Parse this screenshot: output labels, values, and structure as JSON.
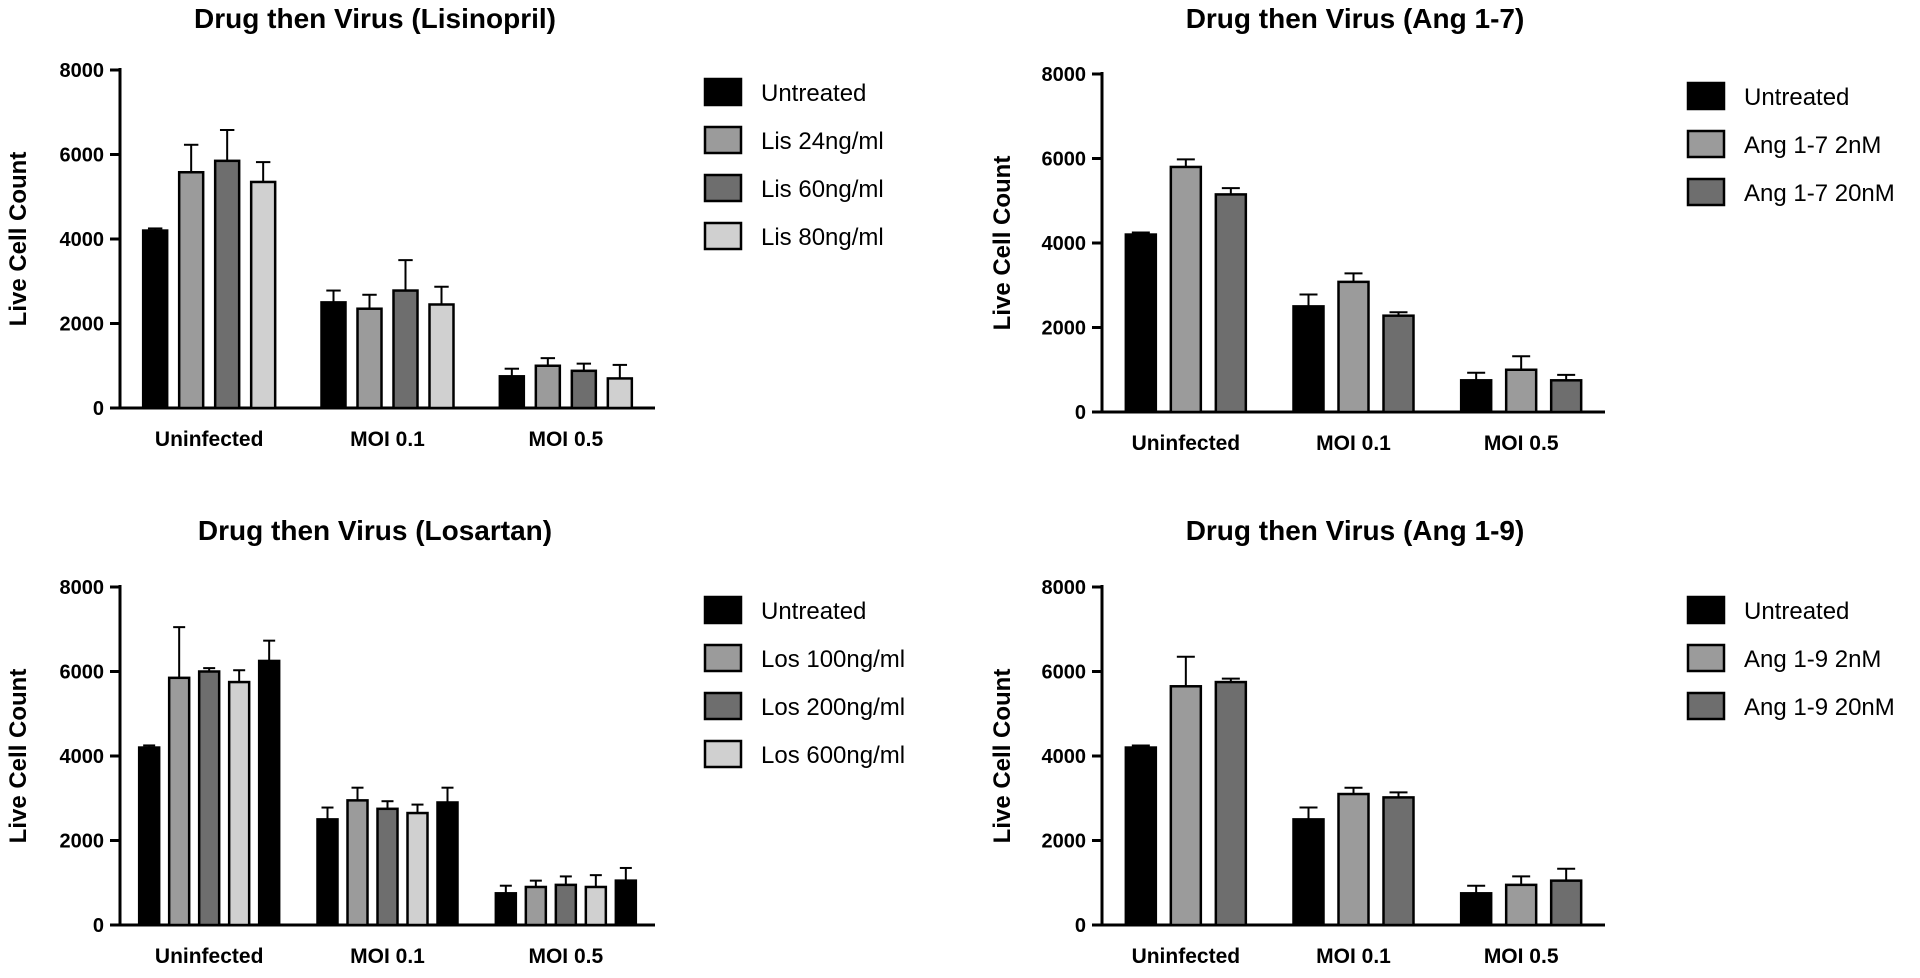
{
  "chart_data": [
    {
      "type": "bar",
      "title": "Drug then Virus (Lisinopril)",
      "ylabel": "Live Cell Count",
      "xlabel": "",
      "ylim": [
        0,
        8000
      ],
      "yticks": [
        0,
        2000,
        4000,
        6000,
        8000
      ],
      "categories": [
        "Uninfected",
        "MOI 0.1",
        "MOI 0.5"
      ],
      "legend": "right",
      "series": [
        {
          "name": "Untreated",
          "color": "#000000",
          "values": [
            4200,
            2500,
            750
          ],
          "errors": [
            50,
            280,
            180
          ]
        },
        {
          "name": "Lis 24ng/ml",
          "color": "#9b9b9b",
          "values": [
            5580,
            2350,
            1000
          ],
          "errors": [
            650,
            330,
            180
          ]
        },
        {
          "name": "Lis 60ng/ml",
          "color": "#6e6e6e",
          "values": [
            5850,
            2780,
            880
          ],
          "errors": [
            730,
            720,
            170
          ]
        },
        {
          "name": "Lis 80ng/ml",
          "color": "#d0d0d0",
          "values": [
            5350,
            2450,
            700
          ],
          "errors": [
            470,
            420,
            320
          ]
        }
      ]
    },
    {
      "type": "bar",
      "title": "Drug then Virus (Ang 1-7)",
      "ylabel": "Live Cell Count",
      "xlabel": "",
      "ylim": [
        0,
        8000
      ],
      "yticks": [
        0,
        2000,
        4000,
        6000,
        8000
      ],
      "categories": [
        "Uninfected",
        "MOI 0.1",
        "MOI 0.5"
      ],
      "legend": "right",
      "series": [
        {
          "name": "Untreated",
          "color": "#000000",
          "values": [
            4200,
            2500,
            750
          ],
          "errors": [
            50,
            280,
            180
          ]
        },
        {
          "name": "Ang 1-7 2nM",
          "color": "#9b9b9b",
          "values": [
            5800,
            3080,
            1000
          ],
          "errors": [
            180,
            200,
            320
          ]
        },
        {
          "name": "Ang 1-7 20nM",
          "color": "#6e6e6e",
          "values": [
            5150,
            2280,
            750
          ],
          "errors": [
            150,
            80,
            130
          ]
        }
      ]
    },
    {
      "type": "bar",
      "title": "Drug then Virus (Losartan)",
      "ylabel": "Live Cell Count",
      "xlabel": "",
      "ylim": [
        0,
        8000
      ],
      "yticks": [
        0,
        2000,
        4000,
        6000,
        8000
      ],
      "categories": [
        "Uninfected",
        "MOI 0.1",
        "MOI 0.5"
      ],
      "legend": "right",
      "series": [
        {
          "name": "Untreated",
          "color": "#000000",
          "values": [
            4200,
            2500,
            750
          ],
          "errors": [
            50,
            280,
            180
          ]
        },
        {
          "name": "Los 100ng/ml",
          "color": "#9b9b9b",
          "values": [
            5850,
            2950,
            900
          ],
          "errors": [
            1200,
            300,
            150
          ]
        },
        {
          "name": "Los 200ng/ml",
          "color": "#6e6e6e",
          "values": [
            6000,
            2750,
            950
          ],
          "errors": [
            80,
            180,
            200
          ]
        },
        {
          "name": "Los 600ng/ml",
          "color": "#d0d0d0",
          "values": [
            5750,
            2650,
            900
          ],
          "errors": [
            280,
            200,
            280
          ]
        },
        {
          "name": "",
          "color": "#000000",
          "values": [
            6250,
            2900,
            1050
          ],
          "errors": [
            480,
            350,
            300
          ]
        }
      ]
    },
    {
      "type": "bar",
      "title": "Drug then Virus (Ang 1-9)",
      "ylabel": "Live Cell Count",
      "xlabel": "",
      "ylim": [
        0,
        8000
      ],
      "yticks": [
        0,
        2000,
        4000,
        6000,
        8000
      ],
      "categories": [
        "Uninfected",
        "MOI 0.1",
        "MOI 0.5"
      ],
      "legend": "right",
      "series": [
        {
          "name": "Untreated",
          "color": "#000000",
          "values": [
            4200,
            2500,
            750
          ],
          "errors": [
            50,
            280,
            180
          ]
        },
        {
          "name": "Ang 1-9 2nM",
          "color": "#9b9b9b",
          "values": [
            5650,
            3100,
            950
          ],
          "errors": [
            700,
            150,
            200
          ]
        },
        {
          "name": "Ang 1-9 20nM",
          "color": "#6e6e6e",
          "values": [
            5750,
            3020,
            1050
          ],
          "errors": [
            80,
            120,
            280
          ]
        }
      ]
    }
  ]
}
